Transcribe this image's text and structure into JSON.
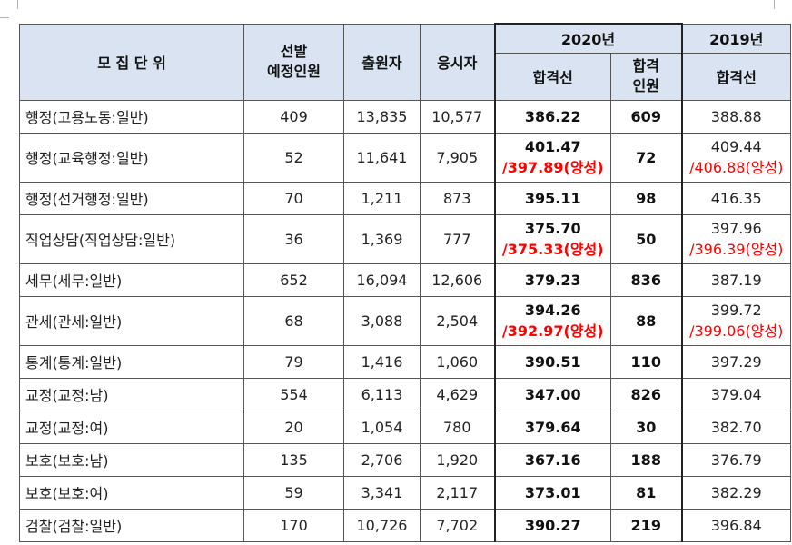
{
  "header": {
    "unit": "모 집 단 위",
    "planned": [
      "선발",
      "예정인원"
    ],
    "applicants": "출원자",
    "examinees": "응시자",
    "year2020": "2020년",
    "year2019": "2019년",
    "cutoff2020": "합격선",
    "passers": [
      "합격",
      "인원"
    ],
    "cutoff2019": "합격선"
  },
  "rows": [
    {
      "unit": "행정(고용노동:일반)",
      "planned": "409",
      "applicants": "13,835",
      "examinees": "10,577",
      "cut2020": "386.22",
      "cut2020_extra": "",
      "passers": "609",
      "cut2019": "388.88",
      "cut2019_extra": ""
    },
    {
      "unit": "행정(교육행정:일반)",
      "planned": "52",
      "applicants": "11,641",
      "examinees": "7,905",
      "cut2020": "401.47",
      "cut2020_extra": "/397.89(양성)",
      "passers": "72",
      "cut2019": "409.44",
      "cut2019_extra": "/406.88(양성)"
    },
    {
      "unit": "행정(선거행정:일반)",
      "planned": "70",
      "applicants": "1,211",
      "examinees": "873",
      "cut2020": "395.11",
      "cut2020_extra": "",
      "passers": "98",
      "cut2019": "416.35",
      "cut2019_extra": ""
    },
    {
      "unit": "직업상담(직업상담:일반)",
      "planned": "36",
      "applicants": "1,369",
      "examinees": "777",
      "cut2020": "375.70",
      "cut2020_extra": "/375.33(양성)",
      "passers": "50",
      "cut2019": "397.96",
      "cut2019_extra": "/396.39(양성)"
    },
    {
      "unit": "세무(세무:일반)",
      "planned": "652",
      "applicants": "16,094",
      "examinees": "12,606",
      "cut2020": "379.23",
      "cut2020_extra": "",
      "passers": "836",
      "cut2019": "387.19",
      "cut2019_extra": ""
    },
    {
      "unit": "관세(관세:일반)",
      "planned": "68",
      "applicants": "3,088",
      "examinees": "2,504",
      "cut2020": "394.26",
      "cut2020_extra": "/392.97(양성)",
      "passers": "88",
      "cut2019": "399.72",
      "cut2019_extra": "/399.06(양성)"
    },
    {
      "unit": "통계(통계:일반)",
      "planned": "79",
      "applicants": "1,416",
      "examinees": "1,060",
      "cut2020": "390.51",
      "cut2020_extra": "",
      "passers": "110",
      "cut2019": "397.29",
      "cut2019_extra": ""
    },
    {
      "unit": "교정(교정:남)",
      "planned": "554",
      "applicants": "6,113",
      "examinees": "4,629",
      "cut2020": "347.00",
      "cut2020_extra": "",
      "passers": "826",
      "cut2019": "379.04",
      "cut2019_extra": ""
    },
    {
      "unit": "교정(교정:여)",
      "planned": "20",
      "applicants": "1,054",
      "examinees": "780",
      "cut2020": "379.64",
      "cut2020_extra": "",
      "passers": "30",
      "cut2019": "382.70",
      "cut2019_extra": ""
    },
    {
      "unit": "보호(보호:남)",
      "planned": "135",
      "applicants": "2,706",
      "examinees": "1,920",
      "cut2020": "367.16",
      "cut2020_extra": "",
      "passers": "188",
      "cut2019": "376.79",
      "cut2019_extra": ""
    },
    {
      "unit": "보호(보호:여)",
      "planned": "59",
      "applicants": "3,341",
      "examinees": "2,117",
      "cut2020": "373.01",
      "cut2020_extra": "",
      "passers": "81",
      "cut2019": "382.29",
      "cut2019_extra": ""
    },
    {
      "unit": "검찰(검찰:일반)",
      "planned": "170",
      "applicants": "10,726",
      "examinees": "7,702",
      "cut2020": "390.27",
      "cut2020_extra": "",
      "passers": "219",
      "cut2019": "396.84",
      "cut2019_extra": ""
    }
  ],
  "colors": {
    "header_bg": "#d9e3f1",
    "highlight": "#ff0000"
  }
}
